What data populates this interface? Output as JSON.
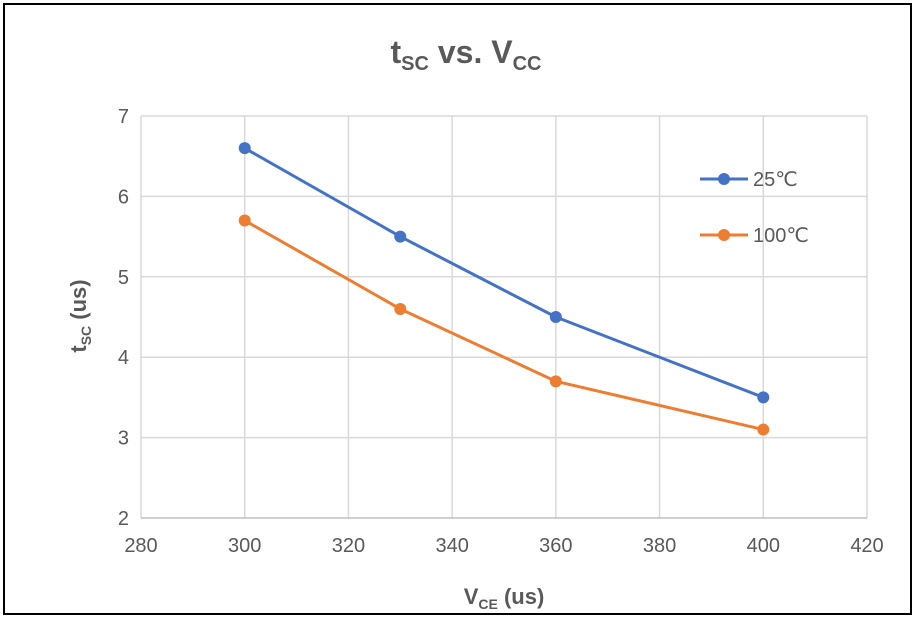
{
  "chart_data": {
    "type": "line",
    "title": {
      "main": "t",
      "main_sub": "SC",
      "middle": " vs. V",
      "end_sub": "CC"
    },
    "xlabel": {
      "main": "V",
      "sub": "CE",
      "rest": " (us)"
    },
    "ylabel": {
      "main": "t",
      "sub": "SC",
      "rest": " (us)"
    },
    "xlim": [
      280,
      420
    ],
    "ylim": [
      2,
      7
    ],
    "xticks": [
      "280",
      "300",
      "320",
      "340",
      "360",
      "380",
      "400",
      "420"
    ],
    "yticks": [
      "2",
      "3",
      "4",
      "5",
      "6",
      "7"
    ],
    "grid": true,
    "legend_position": "right",
    "series": [
      {
        "name": "25℃",
        "color": "#4472C4",
        "x": [
          300,
          330,
          360,
          400
        ],
        "y": [
          6.6,
          5.5,
          4.5,
          3.5
        ]
      },
      {
        "name": "100℃",
        "color": "#ED7D31",
        "x": [
          300,
          330,
          360,
          400
        ],
        "y": [
          5.7,
          4.6,
          3.7,
          3.1
        ]
      }
    ]
  }
}
